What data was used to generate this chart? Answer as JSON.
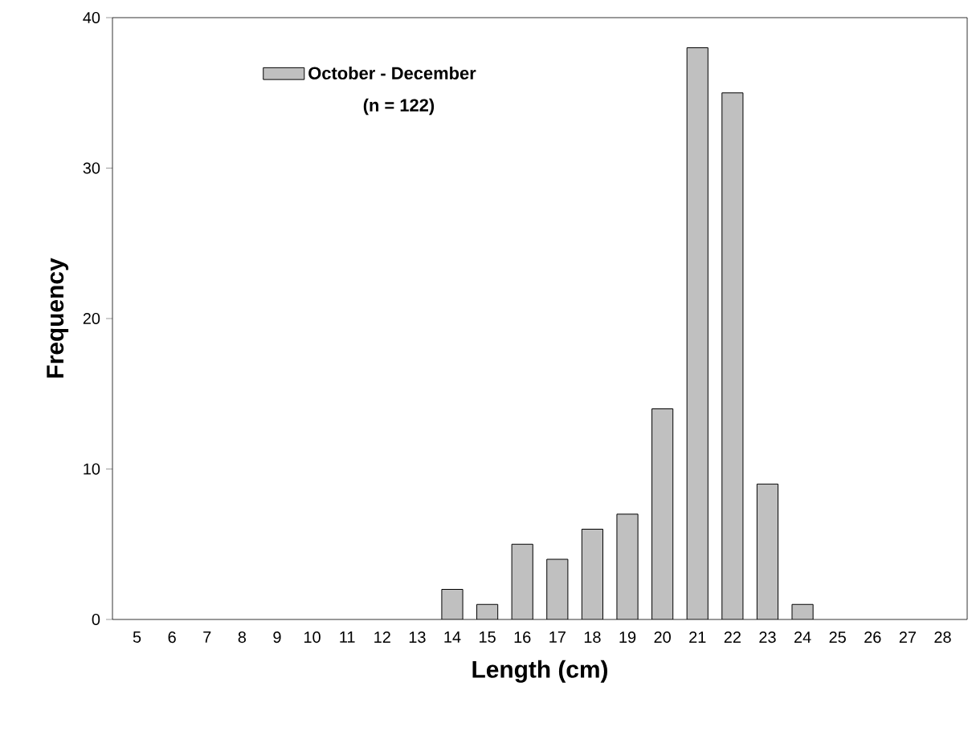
{
  "chart_data": {
    "type": "bar",
    "xlabel": "Length (cm)",
    "ylabel": "Frequency",
    "categories": [
      "5",
      "6",
      "7",
      "8",
      "9",
      "10",
      "11",
      "12",
      "13",
      "14",
      "15",
      "16",
      "17",
      "18",
      "19",
      "20",
      "21",
      "22",
      "23",
      "24",
      "25",
      "26",
      "27",
      "28"
    ],
    "series": [
      {
        "name": "October - December",
        "color": "#c0c0c0",
        "values": [
          0,
          0,
          0,
          0,
          0,
          0,
          0,
          0,
          0,
          2,
          1,
          5,
          4,
          6,
          7,
          14,
          38,
          35,
          9,
          1,
          0,
          0,
          0,
          0
        ]
      }
    ],
    "annotations": [
      "(n = 122)"
    ],
    "ylim": [
      0,
      40
    ],
    "yticks": [
      0,
      10,
      20,
      30,
      40
    ],
    "grid": false,
    "legend": "top left"
  }
}
